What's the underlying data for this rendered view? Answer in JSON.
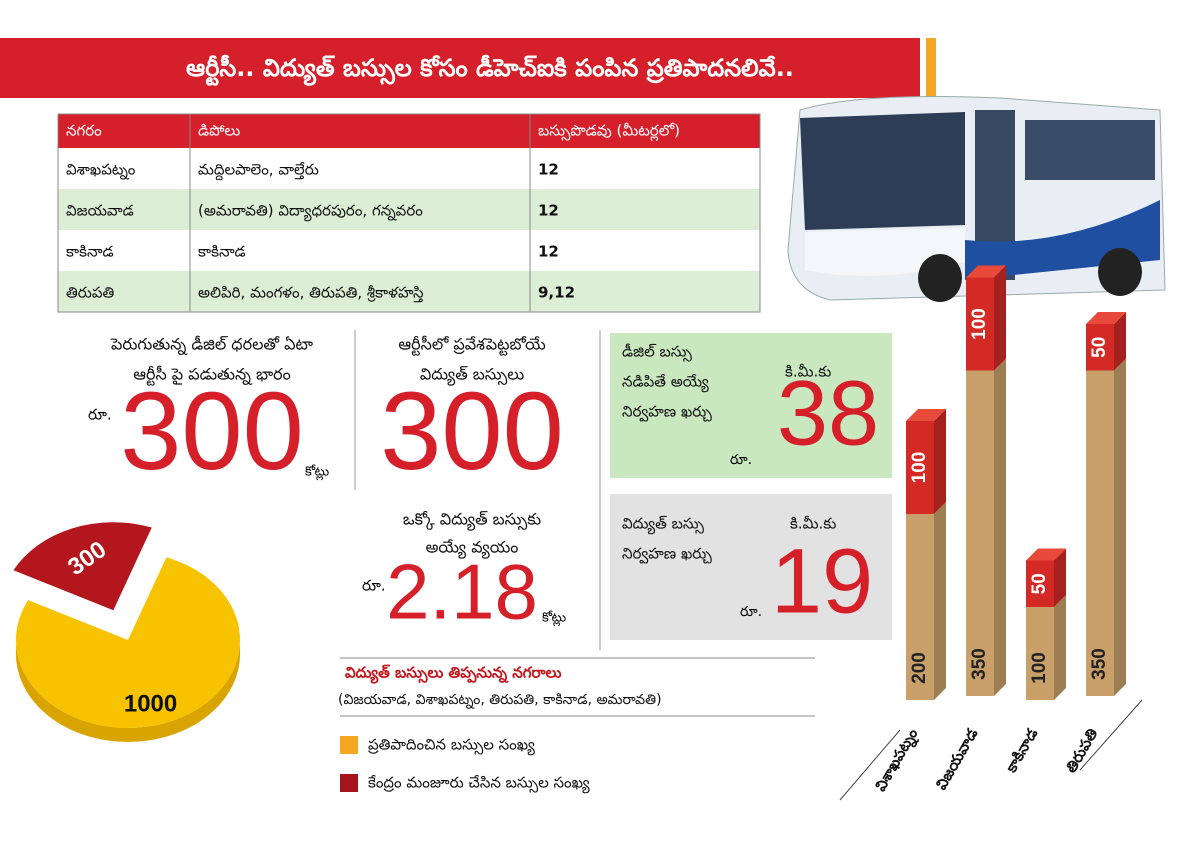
{
  "header": {
    "title": "ఆర్టీసీ.. విద్యుత్ బస్సుల కోసం డీహెచ్ఐకి పంపిన ప్రతిపాదనలివే.."
  },
  "table": {
    "columns": [
      "నగరం",
      "డిపోలు",
      "బస్సుపొడవు (మీటర్లలో)"
    ],
    "rows": [
      [
        "విశాఖపట్నం",
        "మద్దిలపాలెం, వాల్తేరు",
        "12"
      ],
      [
        "విజయవాడ",
        "(అమరావతి) విద్యాధరపురం, గన్నవరం",
        "12"
      ],
      [
        "కాకినాడ",
        "కాకినాడ",
        "12"
      ],
      [
        "తిరుపతి",
        "అలిపిరి, మంగళం, తిరుపతి, శ్రీకాళహస్తి",
        "9,12"
      ]
    ]
  },
  "stats": {
    "diesel_burden": {
      "caption": [
        "పెరుగుతున్న డీజిల్ ధరలతో ఏటా",
        "ఆర్టీసీ పై పడుతున్న భారం"
      ],
      "currency": "రూ.",
      "value": 300,
      "unit": "కోట్లు"
    },
    "electric_buses": {
      "caption": [
        "ఆర్టీసీలో ప్రవేశపెట్టబోయే",
        "విద్యుత్ బస్సులు"
      ],
      "value": 300
    },
    "cost_per_bus": {
      "caption": [
        "ఒక్కో విద్యుత్ బస్సుకు",
        "అయ్యే వ్యయం"
      ],
      "currency": "రూ.",
      "value": 2.18,
      "unit": "కోట్లు"
    },
    "diesel_cost": {
      "caption": [
        "డీజిల్ బస్సు",
        "నడిపితే అయ్యే",
        "నిర్వహణ ఖర్చు"
      ],
      "per": "కి.మీ.కు",
      "currency": "రూ.",
      "value": 38
    },
    "electric_cost": {
      "caption": [
        "విద్యుత్ బస్సు",
        "నిర్వహణ ఖర్చు"
      ],
      "per": "కి.మీ.కు",
      "currency": "రూ.",
      "value": 19
    }
  },
  "cities": {
    "title": "విద్యుత్ బస్సులు తిప్పనున్న నగరాలు",
    "list": "(విజయవాడ, విశాఖపట్నం, తిరుపతి, కాకినాడ, అమరావతి)"
  },
  "pie": {
    "values": [
      1000,
      300
    ],
    "colors": [
      "#f7c300",
      "#b3161c"
    ]
  },
  "bars": {
    "categories": [
      "విశాఖపట్నం",
      "విజయవాడ",
      "కాకినాడ",
      "తిరుపతి"
    ],
    "series": [
      {
        "name": "ప్రతిపాదించిన బస్సుల సంఖ్య",
        "color": "#f5a623",
        "bar_color": "#c9a06a",
        "values": [
          200,
          350,
          100,
          350
        ]
      },
      {
        "name": "కేంద్రం మంజూరు చేసిన బస్సుల సంఖ్య",
        "color": "#a3151a",
        "bar_color": "#d42a26",
        "values": [
          100,
          100,
          50,
          50
        ]
      }
    ]
  }
}
